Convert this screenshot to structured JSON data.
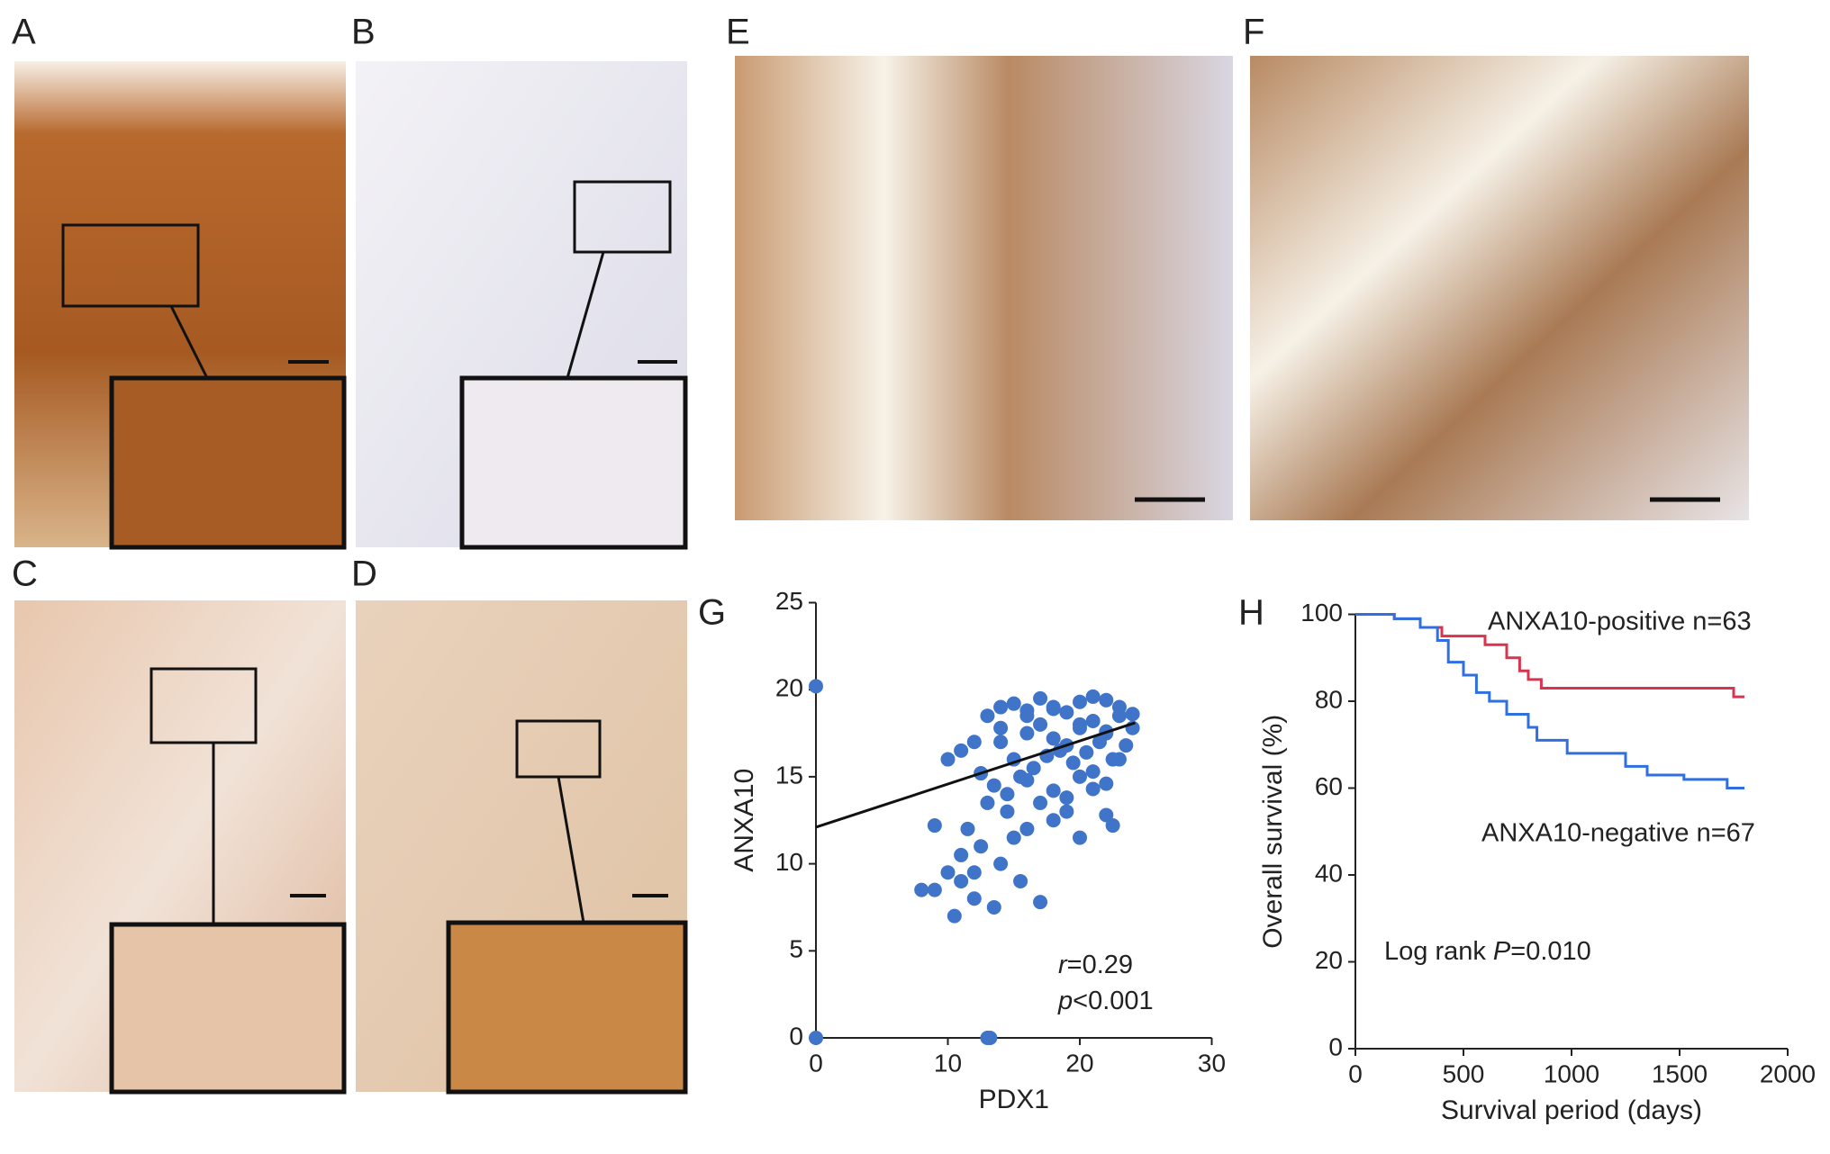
{
  "panels": [
    "A",
    "B",
    "C",
    "D",
    "E",
    "F",
    "G",
    "H"
  ],
  "chart_data": [
    {
      "type": "scatter",
      "xlabel": "PDX1",
      "ylabel": "ANXA10",
      "xlim": [
        0,
        30
      ],
      "ylim": [
        0,
        25
      ],
      "xticks": [
        0,
        10,
        20,
        30
      ],
      "yticks": [
        0,
        5,
        10,
        15,
        20,
        25
      ],
      "color": "#3f74c9",
      "series": [
        {
          "x": [
            0,
            0,
            13,
            13.2,
            8,
            9,
            10.5,
            12,
            13.5,
            17,
            10,
            11,
            12.5,
            14,
            15,
            16,
            14.5,
            11.5,
            9,
            13,
            18,
            22.5,
            20,
            22,
            19,
            15.5,
            12,
            11,
            10,
            11,
            12,
            13,
            14,
            15,
            16,
            17,
            18,
            19,
            20,
            21,
            22,
            23,
            24,
            14,
            15,
            16,
            17,
            18,
            19,
            20,
            21,
            22,
            23,
            15.5,
            16.5,
            17.5,
            18.5,
            19.5,
            20.5,
            21.5,
            22.5,
            23.5,
            12.5,
            13.5,
            14.5,
            16,
            18,
            20,
            21,
            22,
            23,
            17,
            19,
            21,
            14,
            16,
            18,
            20,
            22,
            24
          ],
          "y": [
            20.2,
            0,
            0,
            0,
            8.5,
            8.5,
            7,
            8,
            7.5,
            7.8,
            9.5,
            10.5,
            11,
            10,
            11.5,
            12,
            13,
            12,
            12.2,
            13.5,
            12.5,
            12.2,
            11.5,
            12.8,
            13,
            9,
            9.5,
            9,
            16,
            16.5,
            17,
            18.5,
            19,
            19.2,
            18.8,
            19.5,
            19,
            18.7,
            19.3,
            19.6,
            19.4,
            19,
            17.8,
            17,
            16,
            17.5,
            18,
            17.2,
            16.8,
            17.8,
            18.2,
            17.5,
            18.5,
            15,
            15.5,
            16.2,
            16.5,
            15.8,
            16.4,
            17,
            16,
            16.8,
            15.2,
            14.5,
            14,
            14.8,
            14.2,
            15,
            15.3,
            14.6,
            16,
            13.5,
            13.8,
            14.3,
            17.8,
            18.5,
            18.9,
            18,
            17.6,
            18.6
          ]
        }
      ],
      "trendline": {
        "x": [
          0,
          24.2
        ],
        "y": [
          12.1,
          18.1
        ]
      },
      "annotations": [
        [
          "r",
          "=0.29"
        ],
        [
          "p",
          "<0.001"
        ]
      ]
    },
    {
      "type": "line",
      "xlabel": "Survival period (days)",
      "ylabel": "Overall survival (%)",
      "xlim": [
        0,
        2000
      ],
      "ylim": [
        0,
        100
      ],
      "xticks": [
        0,
        500,
        1000,
        1500,
        2000
      ],
      "yticks": [
        0,
        20,
        40,
        60,
        80,
        100
      ],
      "series": [
        {
          "name": "ANXA10-positive n=63",
          "color": "#d9344f",
          "x": [
            0,
            180,
            180,
            300,
            300,
            400,
            400,
            600,
            600,
            700,
            700,
            760,
            760,
            800,
            800,
            860,
            860,
            1750,
            1750,
            1800
          ],
          "y": [
            100,
            100,
            99,
            99,
            97,
            97,
            95,
            95,
            93,
            93,
            90,
            90,
            87,
            87,
            85,
            85,
            83,
            83,
            81,
            81
          ]
        },
        {
          "name": "ANXA10-negative n=67",
          "color": "#2f6fe0",
          "x": [
            0,
            180,
            180,
            300,
            300,
            380,
            380,
            430,
            430,
            500,
            500,
            560,
            560,
            620,
            620,
            700,
            700,
            800,
            800,
            840,
            840,
            980,
            980,
            1250,
            1250,
            1350,
            1350,
            1520,
            1520,
            1720,
            1720,
            1800
          ],
          "y": [
            100,
            100,
            99,
            99,
            97,
            97,
            94,
            94,
            89,
            89,
            86,
            86,
            82,
            82,
            80,
            80,
            77,
            77,
            74,
            74,
            71,
            71,
            68,
            68,
            65,
            65,
            63,
            63,
            62,
            62,
            60,
            60
          ]
        }
      ],
      "annotation": [
        "Log rank ",
        "P",
        "=0.010"
      ]
    }
  ]
}
